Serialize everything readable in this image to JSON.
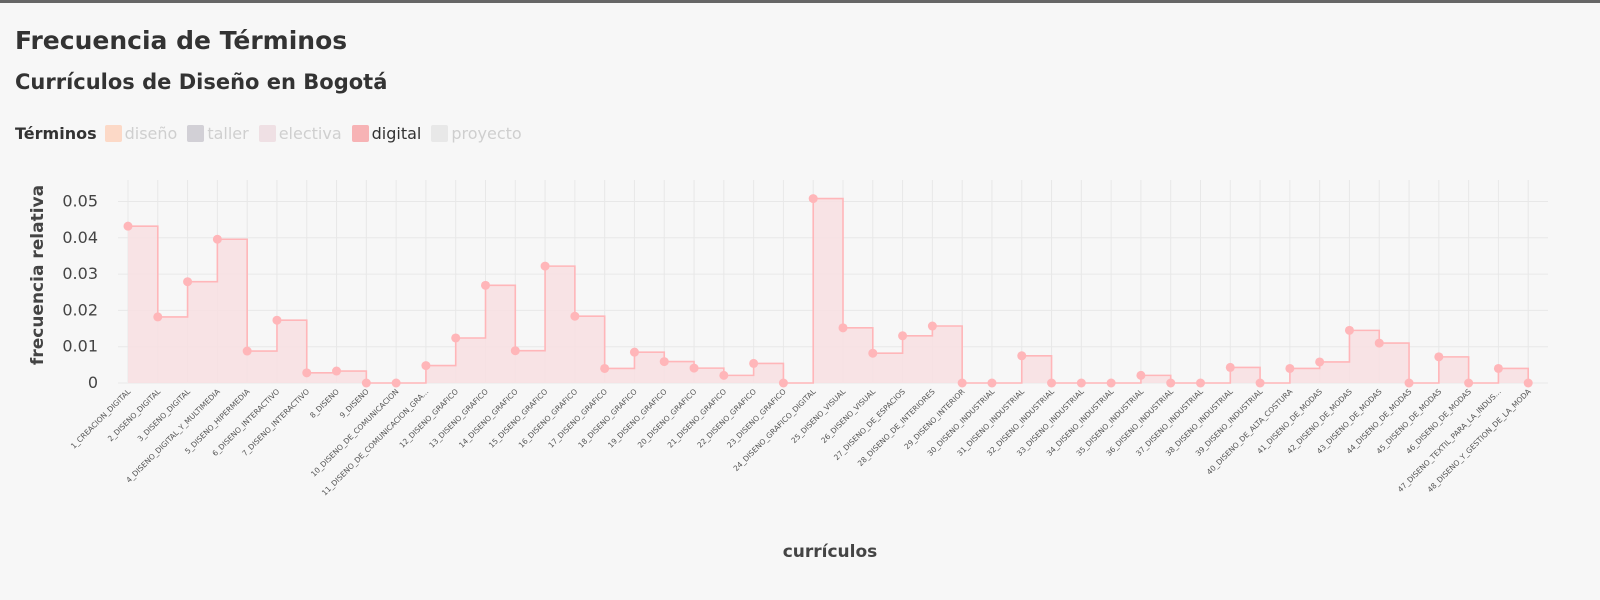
{
  "header": {
    "title": "Frecuencia de Términos",
    "subtitle": "Currículos de Diseño en Bogotá"
  },
  "legend": {
    "title": "Términos",
    "items": [
      {
        "label": "diseño",
        "color": "#fcd9c7",
        "active": false
      },
      {
        "label": "taller",
        "color": "#d2d0d6",
        "active": false
      },
      {
        "label": "electiva",
        "color": "#efe0e4",
        "active": false
      },
      {
        "label": "digital",
        "color": "#f7b3b5",
        "active": true
      },
      {
        "label": "proyecto",
        "color": "#e8e8e8",
        "active": false
      }
    ]
  },
  "colors": {
    "line": "#ffb6b9",
    "fill": "#f8dfe2",
    "grid": "#e8e8e8"
  },
  "chart_data": {
    "type": "area",
    "step": true,
    "series": [
      {
        "name": "digital",
        "values": [
          0.0432,
          0.0182,
          0.0279,
          0.0396,
          0.0088,
          0.0173,
          0.0028,
          0.0033,
          0.0,
          0.0,
          0.0048,
          0.0124,
          0.0269,
          0.0089,
          0.0322,
          0.0184,
          0.004,
          0.0085,
          0.0059,
          0.0041,
          0.0021,
          0.0054,
          0.0,
          0.0508,
          0.0152,
          0.0082,
          0.013,
          0.0157,
          0.0,
          0.0,
          0.0075,
          0.0,
          0.0,
          0.0,
          0.0021,
          0.0,
          0.0,
          0.0043,
          0.0,
          0.004,
          0.0058,
          0.0145,
          0.011,
          0.0,
          0.0072,
          0.0,
          0.004,
          0.0
        ]
      }
    ],
    "categories": [
      "1_CREACION_DIGITAL",
      "2_DISENO_DIGITAL",
      "3_DISENO_DIGITAL",
      "4_DISENO_DIGITAL_Y_MULTIMEDIA",
      "5_DISENO_HIPERMEDIA",
      "6_DISENO_INTERACTIVO",
      "7_DISENO_INTERACTIVO",
      "8_DISENO",
      "9_DISENO",
      "10_DISENO_DE_COMUNICACION",
      "11_DISENO_DE_COMUNICACION_GRA...",
      "12_DISENO_GRAFICO",
      "13_DISENO_GRAFICO",
      "14_DISENO_GRAFICO",
      "15_DISENO_GRAFICO",
      "16_DISENO_GRAFICO",
      "17_DISENO_GRAFICO",
      "18_DISENO_GRAFICO",
      "19_DISENO_GRAFICO",
      "20_DISENO_GRAFICO",
      "21_DISENO_GRAFICO",
      "22_DISENO_GRAFICO",
      "23_DISENO_GRAFICO",
      "24_DISENO_GRAFICO_DIGITAL",
      "25_DISENO_VISUAL",
      "26_DISENO_VISUAL",
      "27_DISENO_DE_ESPACIOS",
      "28_DISENO_DE_INTERIORES",
      "29_DISENO_INTERIOR",
      "30_DISENO_INDUSTRIAL",
      "31_DISENO_INDUSTRIAL",
      "32_DISENO_INDUSTRIAL",
      "33_DISENO_INDUSTRIAL",
      "34_DISENO_INDUSTRIAL",
      "35_DISENO_INDUSTRIAL",
      "36_DISENO_INDUSTRIAL",
      "37_DISENO_INDUSTRIAL",
      "38_DISENO_INDUSTRIAL",
      "39_DISENO_INDUSTRIAL",
      "40_DISENO_DE_ALTA_COSTURA",
      "41_DISENO_DE_MODAS",
      "42_DISENO_DE_MODAS",
      "43_DISENO_DE_MODAS",
      "44_DISENO_DE_MODAS",
      "45_DISENO_DE_MODAS",
      "46_DISENO_DE_MODAS",
      "47_DISENO_TEXTIL_PARA_LA_INDUS...",
      "48_DISENO_Y_GESTION_DE_LA_MODA"
    ],
    "yticks": [
      "0",
      "0.01",
      "0.02",
      "0.03",
      "0.04",
      "0.05"
    ],
    "ylim": [
      0,
      0.055
    ],
    "xlabel": "currículos",
    "ylabel": "frecuencia relativa",
    "grid": true,
    "legend_position": "top-left"
  }
}
